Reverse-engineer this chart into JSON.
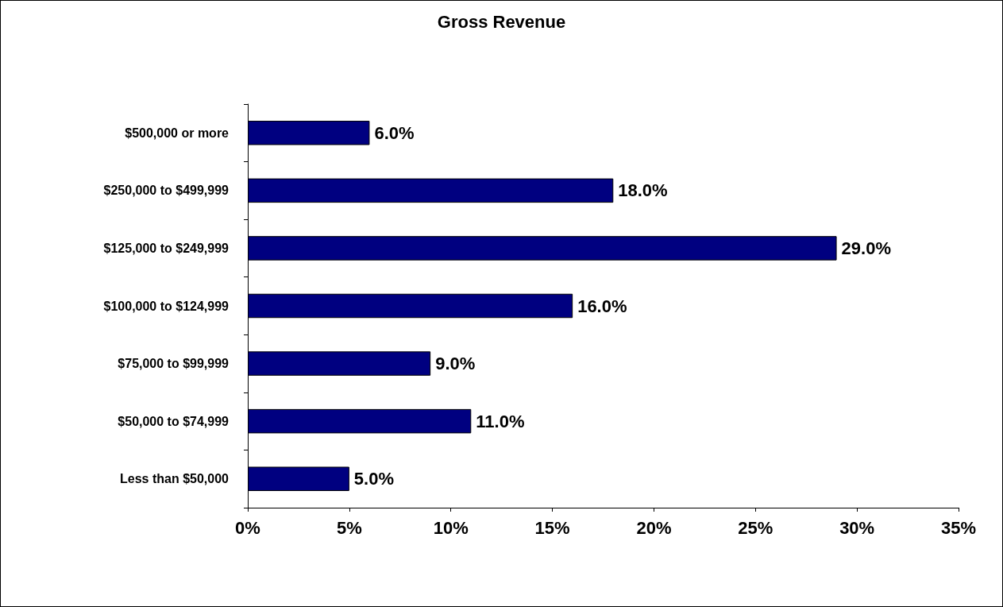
{
  "chart_data": {
    "type": "bar",
    "title": "Gross Revenue",
    "orientation": "horizontal",
    "categories": [
      "$500,000 or more",
      "$250,000 to $499,999",
      "$125,000 to $249,999",
      "$100,000 to $124,999",
      "$75,000 to $99,999",
      "$50,000 to $74,999",
      "Less than $50,000"
    ],
    "values": [
      6,
      18,
      29,
      16,
      9,
      11,
      5
    ],
    "value_labels": [
      "6.0%",
      "18.0%",
      "29.0%",
      "16.0%",
      "9.0%",
      "11.0%",
      "5.0%"
    ],
    "color": "#000080",
    "xlim": [
      0,
      35
    ],
    "xticks": [
      {
        "value": 0,
        "label": "0%"
      },
      {
        "value": 5,
        "label": "5%"
      },
      {
        "value": 10,
        "label": "10%"
      },
      {
        "value": 15,
        "label": "15%"
      },
      {
        "value": 20,
        "label": "20%"
      },
      {
        "value": 25,
        "label": "25%"
      },
      {
        "value": 30,
        "label": "30%"
      },
      {
        "value": 35,
        "label": "35%"
      }
    ],
    "grid": false
  }
}
